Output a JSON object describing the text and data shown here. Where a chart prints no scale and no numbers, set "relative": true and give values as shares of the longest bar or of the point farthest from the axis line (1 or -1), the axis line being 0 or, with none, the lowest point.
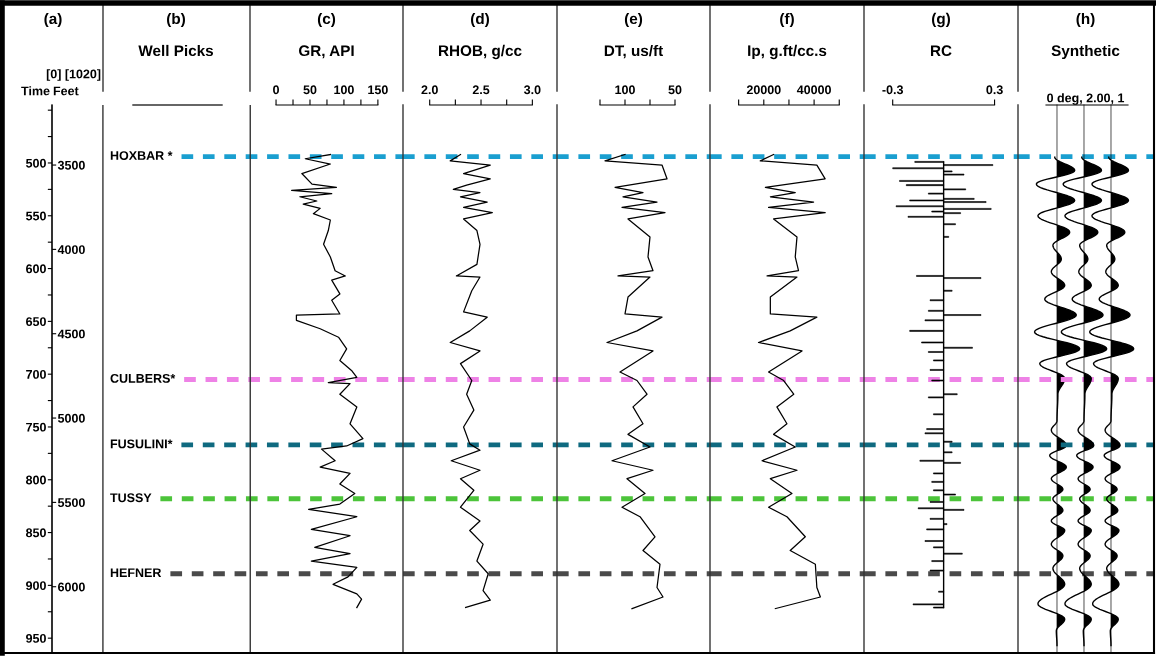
{
  "chart_data": [
    {
      "type": "line",
      "orientation": "horizontal",
      "title": "(c)",
      "subtitle": "GR, API",
      "annotations": [
        "(a)",
        "[0] [1020]",
        "(b)",
        "Well Picks"
      ],
      "ylabel": "Time",
      "y2label": "Feet",
      "color": "#000000",
      "xlim": [
        -330,
        187
      ],
      "xticks": [
        0,
        {
          "value": 25,
          "label": null
        },
        50,
        {
          "value": 75,
          "label": null
        },
        100,
        {
          "value": 125,
          "label": null
        },
        150
      ],
      "ylim": [
        963.1,
        445.1
      ],
      "yticks": [
        {
          "value": 450,
          "label": null
        },
        {
          "value": 475,
          "label": null
        },
        500,
        {
          "value": 525,
          "label": null
        },
        550,
        {
          "value": 575,
          "label": null
        },
        600,
        {
          "value": 625,
          "label": null
        },
        650,
        {
          "value": 675,
          "label": null
        },
        700,
        {
          "value": 725,
          "label": null
        },
        750,
        {
          "value": 775,
          "label": null
        },
        800,
        {
          "value": 825,
          "label": null
        },
        850,
        {
          "value": 875,
          "label": null
        },
        900,
        {
          "value": 925,
          "label": null
        },
        950
      ],
      "y2lim": [
        6387,
        3144
      ],
      "y2ticks": [
        3500,
        4000,
        4500,
        5000,
        5500,
        6000
      ],
      "x": [
        492,
        496,
        501,
        510,
        520,
        523,
        526,
        529,
        532,
        536,
        539,
        543,
        548,
        554,
        564,
        577,
        589,
        602,
        607,
        611,
        624,
        630,
        643,
        644,
        649,
        657,
        665,
        676,
        687,
        697,
        703,
        708,
        709,
        719,
        731,
        747,
        761,
        768,
        771,
        782,
        788,
        794,
        804,
        813,
        823,
        828,
        835,
        847,
        853,
        864,
        870,
        877,
        883,
        892,
        899,
        908,
        913,
        921
      ],
      "values": [
        80,
        43,
        80,
        38,
        53,
        89,
        23,
        82,
        35,
        60,
        40,
        65,
        55,
        80,
        77,
        70,
        80,
        87,
        102,
        82,
        94,
        82,
        94,
        30,
        30,
        65,
        92,
        104,
        94,
        112,
        119,
        77,
        109,
        94,
        119,
        109,
        128,
        104,
        67,
        87,
        65,
        109,
        94,
        116,
        94,
        48,
        119,
        52,
        109,
        57,
        109,
        52,
        119,
        106,
        84,
        119,
        126,
        119
      ],
      "ref_lines": [
        {
          "axis": "y",
          "value": 494,
          "label": "HOXBAR *",
          "color": "#1a9fd0",
          "line_style": "dashed"
        },
        {
          "axis": "y",
          "value": 705,
          "label": "CULBERS*",
          "color": "#ee82e6",
          "line_style": "dashed"
        },
        {
          "axis": "y",
          "value": 767,
          "label": "FUSULINI*",
          "color": "#0f6a80",
          "line_style": "dashed"
        },
        {
          "axis": "y",
          "value": 818,
          "label": "TUSSY",
          "color": "#4cc43a",
          "line_style": "dashed"
        },
        {
          "axis": "y",
          "value": 889,
          "label": "HEFNER",
          "color": "#4a4a4a",
          "line_style": "dashed"
        },
        {
          "axis": "x",
          "value": -255,
          "color": "#333333",
          "line_style": "solid"
        },
        {
          "axis": "x",
          "value": -38,
          "color": "#333333",
          "line_style": "solid"
        }
      ]
    },
    {
      "type": "line",
      "orientation": "horizontal",
      "title": "(d)",
      "subtitle": "RHOB, g/cc",
      "tick_labels": "x",
      "color": "#000000",
      "xlim": [
        1.74,
        3.24
      ],
      "xticks": [
        {
          "value": 2.0,
          "label": "2.0"
        },
        {
          "value": 2.25,
          "label": null
        },
        2.5,
        {
          "value": 2.75,
          "label": null
        },
        {
          "value": 3.0,
          "label": "3.0"
        }
      ],
      "ylim": [
        963.1,
        445.1
      ],
      "x": [
        492,
        498,
        502,
        510,
        515,
        521,
        525,
        528,
        532,
        537,
        542,
        547,
        553,
        564,
        577,
        596,
        607,
        608,
        621,
        641,
        646,
        659,
        670,
        678,
        690,
        706,
        719,
        734,
        750,
        766,
        772,
        782,
        791,
        799,
        810,
        826,
        839,
        848,
        861,
        877,
        889,
        905,
        914,
        921
      ],
      "values": [
        2.3,
        2.2,
        2.59,
        2.33,
        2.59,
        2.36,
        2.23,
        2.49,
        2.3,
        2.56,
        2.33,
        2.61,
        2.33,
        2.46,
        2.49,
        2.46,
        2.26,
        2.49,
        2.41,
        2.33,
        2.56,
        2.39,
        2.2,
        2.49,
        2.3,
        2.41,
        2.36,
        2.43,
        2.33,
        2.39,
        2.49,
        2.21,
        2.49,
        2.3,
        2.43,
        2.3,
        2.49,
        2.39,
        2.52,
        2.46,
        2.57,
        2.52,
        2.59,
        2.35
      ],
      "ref_lines": [
        {
          "axis": "y",
          "value": 494,
          "color": "#1a9fd0",
          "line_style": "dashed"
        },
        {
          "axis": "y",
          "value": 705,
          "color": "#ee82e6",
          "line_style": "dashed"
        },
        {
          "axis": "y",
          "value": 767,
          "color": "#0f6a80",
          "line_style": "dashed"
        },
        {
          "axis": "y",
          "value": 818,
          "color": "#4cc43a",
          "line_style": "dashed"
        },
        {
          "axis": "y",
          "value": 889,
          "color": "#4a4a4a",
          "line_style": "dashed"
        }
      ]
    },
    {
      "type": "line",
      "orientation": "horizontal",
      "title": "(e)",
      "subtitle": "DT, us/ft",
      "tick_labels": "x",
      "color": "#000000",
      "xlim": [
        168,
        15
      ],
      "xticks": [
        {
          "value": 125,
          "label": null
        },
        100,
        {
          "value": 75,
          "label": null
        },
        50
      ],
      "ylim": [
        963.1,
        445.1
      ],
      "x": [
        492,
        498,
        502,
        515,
        523,
        528,
        532,
        537,
        542,
        547,
        553,
        570,
        589,
        602,
        607,
        608,
        627,
        643,
        646,
        659,
        670,
        678,
        698,
        706,
        719,
        731,
        747,
        757,
        769,
        782,
        791,
        799,
        813,
        826,
        835,
        854,
        867,
        880,
        902,
        911,
        922
      ],
      "values": [
        100,
        120,
        63,
        58,
        110,
        82,
        102,
        68,
        103,
        60,
        97,
        75,
        77,
        72,
        107,
        75,
        97,
        100,
        63,
        88,
        118,
        72,
        105,
        88,
        78,
        92,
        82,
        97,
        75,
        113,
        72,
        98,
        80,
        103,
        85,
        70,
        82,
        65,
        68,
        62,
        93
      ],
      "ref_lines": [
        {
          "axis": "y",
          "value": 494,
          "color": "#1a9fd0",
          "line_style": "dashed"
        },
        {
          "axis": "y",
          "value": 705,
          "color": "#ee82e6",
          "line_style": "dashed"
        },
        {
          "axis": "y",
          "value": 767,
          "color": "#0f6a80",
          "line_style": "dashed"
        },
        {
          "axis": "y",
          "value": 818,
          "color": "#4cc43a",
          "line_style": "dashed"
        },
        {
          "axis": "y",
          "value": 889,
          "color": "#4a4a4a",
          "line_style": "dashed"
        }
      ]
    },
    {
      "type": "line",
      "orientation": "horizontal",
      "title": "(f)",
      "subtitle": "Ip, g.ft/cc.s",
      "tick_labels": "x",
      "color": "#000000",
      "xlim": [
        -1390,
        59840
      ],
      "xticks": [
        {
          "value": 10000,
          "label": null
        },
        20000,
        {
          "value": 30000,
          "label": null
        },
        40000,
        {
          "value": 50000,
          "label": null
        }
      ],
      "ylim": [
        963.1,
        445.1
      ],
      "x": [
        492,
        498,
        502,
        515,
        523,
        528,
        532,
        537,
        542,
        547,
        553,
        570,
        589,
        602,
        607,
        608,
        627,
        643,
        646,
        659,
        670,
        678,
        698,
        706,
        719,
        731,
        747,
        757,
        769,
        782,
        791,
        799,
        813,
        826,
        835,
        854,
        867,
        880,
        902,
        911,
        922
      ],
      "values": [
        23900,
        18600,
        41100,
        44400,
        20600,
        32500,
        22600,
        39800,
        21900,
        44400,
        23900,
        33200,
        32500,
        33800,
        21300,
        33200,
        22600,
        22600,
        41100,
        30500,
        17900,
        35200,
        21900,
        27900,
        31900,
        25200,
        29200,
        23900,
        32500,
        19300,
        33200,
        22600,
        31200,
        21900,
        29200,
        36500,
        30500,
        40500,
        41100,
        42500,
        24600
      ],
      "ref_lines": [
        {
          "axis": "y",
          "value": 494,
          "color": "#1a9fd0",
          "line_style": "dashed"
        },
        {
          "axis": "y",
          "value": 705,
          "color": "#ee82e6",
          "line_style": "dashed"
        },
        {
          "axis": "y",
          "value": 767,
          "color": "#0f6a80",
          "line_style": "dashed"
        },
        {
          "axis": "y",
          "value": 818,
          "color": "#4cc43a",
          "line_style": "dashed"
        },
        {
          "axis": "y",
          "value": 889,
          "color": "#4a4a4a",
          "line_style": "dashed"
        }
      ]
    },
    {
      "type": "bar",
      "orientation": "horizontal",
      "title": "(g)",
      "subtitle": "RC",
      "tick_labels": "x",
      "color": "#000000",
      "xlim": [
        -0.469,
        0.438
      ],
      "xticks": [
        -0.3,
        0.3
      ],
      "ylim": [
        963.1,
        445.1
      ],
      "x": [
        499,
        502,
        505,
        508,
        511,
        517,
        521,
        525,
        529,
        534,
        535.5,
        537,
        541,
        543.5,
        546,
        547.5,
        551,
        558,
        570,
        607,
        609,
        621,
        630,
        640,
        644,
        649,
        659,
        670,
        675,
        679,
        687,
        696,
        706,
        719,
        722,
        738,
        752,
        756,
        764,
        774,
        782,
        784,
        794,
        802,
        810,
        814,
        821,
        827,
        828.5,
        837,
        842,
        847,
        858,
        864,
        870,
        877,
        886,
        906,
        918,
        921
      ],
      "values": [
        -0.17,
        0.29,
        -0.3,
        0.05,
        0.12,
        -0.26,
        -0.22,
        0.13,
        -0.09,
        0.18,
        -0.2,
        0.25,
        -0.28,
        0.28,
        -0.07,
        0.1,
        -0.21,
        0.07,
        0.03,
        -0.16,
        0.22,
        0.05,
        -0.08,
        -0.09,
        0.22,
        -0.11,
        -0.2,
        -0.13,
        0.17,
        -0.09,
        -0.06,
        -0.08,
        -0.07,
        0.08,
        -0.09,
        -0.06,
        -0.1,
        -0.11,
        0.05,
        0.05,
        -0.14,
        0.1,
        -0.06,
        -0.07,
        -0.06,
        0.07,
        -0.08,
        -0.15,
        0.12,
        -0.08,
        0.02,
        -0.1,
        -0.11,
        -0.06,
        0.11,
        -0.07,
        -0.08,
        -0.03,
        -0.18,
        -0.06
      ],
      "ref_lines": [
        {
          "axis": "y",
          "value": 494,
          "color": "#1a9fd0",
          "line_style": "dashed"
        },
        {
          "axis": "y",
          "value": 705,
          "color": "#ee82e6",
          "line_style": "dashed"
        },
        {
          "axis": "y",
          "value": 767,
          "color": "#0f6a80",
          "line_style": "dashed"
        },
        {
          "axis": "y",
          "value": 818,
          "color": "#4cc43a",
          "line_style": "dashed"
        },
        {
          "axis": "y",
          "value": 889,
          "color": "#4a4a4a",
          "line_style": "dashed"
        }
      ]
    },
    {
      "type": "line",
      "orientation": "horizontal",
      "relative": true,
      "tick_labels": false,
      "ylim": [
        963.1,
        445.1
      ],
      "color": "#000000",
      "x": [
        494.5,
        507,
        520,
        535.5,
        550,
        565.5,
        578,
        591,
        603,
        616,
        629,
        644,
        660,
        676,
        690,
        704,
        719,
        744,
        753,
        767.5,
        777,
        788,
        799,
        809,
        818,
        829,
        839,
        848,
        861,
        872,
        884,
        899,
        917.5,
        932,
        943,
        957
      ],
      "values": [
        -0.1,
        0.78,
        -0.91,
        0.78,
        -0.84,
        0.56,
        -0.18,
        0.19,
        -0.25,
        0.34,
        -0.54,
        0.85,
        -0.99,
        1.0,
        -0.76,
        0.34,
        0.04,
        0,
        -0.25,
        0.41,
        -0.32,
        0.41,
        -0.25,
        0.26,
        -0.18,
        0.26,
        -0.25,
        0.34,
        -0.25,
        0.26,
        -0.18,
        0.34,
        -0.84,
        0.34,
        -0.03,
        0
      ]
    },
    {
      "type": "line",
      "orientation": "horizontal",
      "relative": true,
      "title": "(h)",
      "subtitle": "Synthetic",
      "xlabel": "0 deg, 2.00, 1",
      "tick_labels": false,
      "ylim": [
        963.1,
        445.1
      ],
      "color": "#000000",
      "x": [
        494.5,
        507,
        520,
        535.5,
        550,
        565.5,
        578,
        591,
        603,
        616,
        629,
        644,
        660,
        676,
        690,
        704,
        719,
        744,
        753,
        767.5,
        777,
        788,
        799,
        809,
        818,
        829,
        839,
        848,
        861,
        872,
        884,
        899,
        917.5,
        932,
        943,
        957
      ],
      "values": [
        -0.1,
        0.77,
        -0.92,
        0.77,
        -0.84,
        0.61,
        -0.19,
        0.17,
        -0.23,
        0.32,
        -0.52,
        0.84,
        -1.0,
        1.0,
        -0.77,
        0.32,
        0.04,
        0,
        -0.26,
        0.43,
        -0.32,
        0.4,
        -0.26,
        0.27,
        -0.19,
        0.27,
        -0.26,
        0.32,
        -0.26,
        0.27,
        -0.19,
        0.32,
        -0.84,
        0.32,
        -0.03,
        0
      ],
      "ref_lines": [
        {
          "axis": "y",
          "value": 494,
          "color": "#1a9fd0",
          "line_style": "dashed"
        },
        {
          "axis": "y",
          "value": 705,
          "color": "#ee82e6",
          "line_style": "dashed"
        },
        {
          "axis": "y",
          "value": 767,
          "color": "#0f6a80",
          "line_style": "dashed"
        },
        {
          "axis": "y",
          "value": 818,
          "color": "#4cc43a",
          "line_style": "dashed"
        },
        {
          "axis": "y",
          "value": 889,
          "color": "#4a4a4a",
          "line_style": "dashed"
        }
      ]
    },
    {
      "type": "line",
      "orientation": "horizontal",
      "relative": true,
      "tick_labels": false,
      "ylim": [
        963.1,
        445.1
      ],
      "color": "#000000",
      "x": [
        494.5,
        507,
        520,
        535.5,
        550,
        565.5,
        578,
        591,
        603,
        616,
        629,
        644,
        660,
        676,
        690,
        704,
        719,
        744,
        753,
        767.5,
        777,
        788,
        799,
        809,
        818,
        829,
        839,
        848,
        861,
        872,
        884,
        899,
        917.5,
        932,
        943,
        957
      ],
      "values": [
        -0.1,
        0.77,
        -0.84,
        0.77,
        -0.84,
        0.61,
        -0.19,
        0.17,
        -0.23,
        0.32,
        -0.52,
        0.84,
        -0.94,
        1.0,
        -0.77,
        0.32,
        0.04,
        0,
        -0.26,
        0.4,
        -0.3,
        0.4,
        -0.26,
        0.27,
        -0.19,
        0.3,
        -0.26,
        0.35,
        -0.26,
        0.27,
        -0.19,
        0.35,
        -0.81,
        0.32,
        -0.03,
        0
      ]
    }
  ]
}
